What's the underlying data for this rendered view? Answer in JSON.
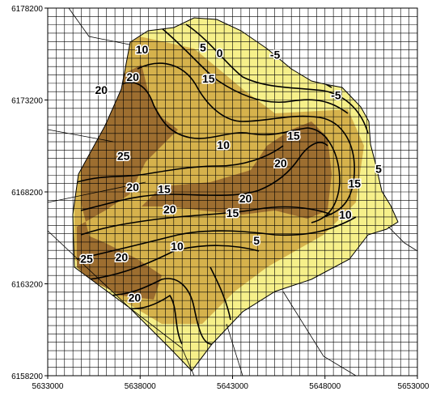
{
  "colors": {
    "low": "#f6f08a",
    "mid": "#d6b24c",
    "high": "#9d6e30",
    "grid": "#000000",
    "contour": "#000000"
  },
  "map": {
    "x_ticks": [
      "5633000",
      "5638000",
      "5643000",
      "5648000",
      "5653000"
    ],
    "y_ticks": [
      "6178200",
      "6173200",
      "6168200",
      "6163200",
      "6158200"
    ],
    "contour_labels": [
      {
        "text": "10",
        "x": 5638100,
        "y": 6175900
      },
      {
        "text": "5",
        "x": 5641400,
        "y": 6176000
      },
      {
        "text": "0",
        "x": 5642300,
        "y": 6175700
      },
      {
        "text": "-5",
        "x": 5645300,
        "y": 6175600
      },
      {
        "text": "20",
        "x": 5637600,
        "y": 6174400
      },
      {
        "text": "20",
        "x": 5635900,
        "y": 6173700
      },
      {
        "text": "15",
        "x": 5641700,
        "y": 6174300
      },
      {
        "text": "-5",
        "x": 5648600,
        "y": 6173400
      },
      {
        "text": "15",
        "x": 5646300,
        "y": 6171200
      },
      {
        "text": "10",
        "x": 5642500,
        "y": 6170700
      },
      {
        "text": "25",
        "x": 5637100,
        "y": 6170100
      },
      {
        "text": "20",
        "x": 5645600,
        "y": 6169700
      },
      {
        "text": "5",
        "x": 5650900,
        "y": 6169400
      },
      {
        "text": "20",
        "x": 5637600,
        "y": 6168400
      },
      {
        "text": "15",
        "x": 5639300,
        "y": 6168300
      },
      {
        "text": "15",
        "x": 5649600,
        "y": 6168600
      },
      {
        "text": "20",
        "x": 5643700,
        "y": 6167800
      },
      {
        "text": "20",
        "x": 5639600,
        "y": 6167200
      },
      {
        "text": "15",
        "x": 5643000,
        "y": 6167000
      },
      {
        "text": "10",
        "x": 5649100,
        "y": 6166900
      },
      {
        "text": "5",
        "x": 5644300,
        "y": 6165500
      },
      {
        "text": "10",
        "x": 5640000,
        "y": 6165200
      },
      {
        "text": "25",
        "x": 5635100,
        "y": 6164500
      },
      {
        "text": "20",
        "x": 5637000,
        "y": 6164600
      },
      {
        "text": "20",
        "x": 5637700,
        "y": 6162400
      }
    ]
  }
}
